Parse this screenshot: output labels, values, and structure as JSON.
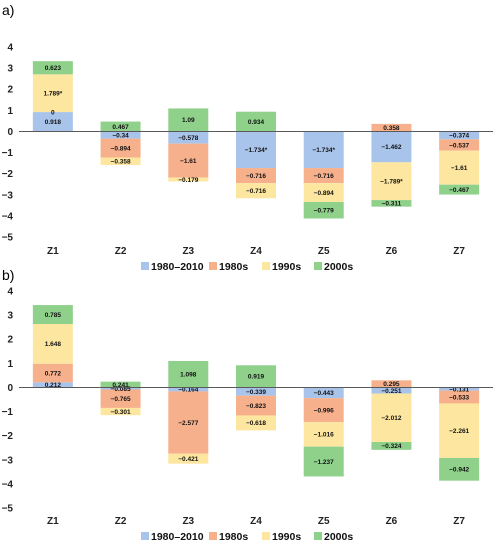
{
  "chart_data": [
    {
      "type": "bar",
      "panel": "a)",
      "categories": [
        "Z1",
        "Z2",
        "Z3",
        "Z4",
        "Z5",
        "Z6",
        "Z7"
      ],
      "ylim": [
        -5,
        4
      ],
      "yticks": [
        "4",
        "3",
        "2",
        "1",
        "0",
        "−1",
        "−2",
        "−3",
        "−4",
        "−5"
      ],
      "grid": false,
      "legend_position": "bottom",
      "series": [
        {
          "name": "1980–2010",
          "color": "#a9c4eb",
          "values": [
            0.918,
            -0.34,
            -0.578,
            -1.734,
            -1.734,
            -1.462,
            -0.374
          ],
          "labels": [
            "0.918",
            "−0.34",
            "−0.578",
            "−1.734*",
            "−1.734*",
            "−1.462",
            "−0.374"
          ]
        },
        {
          "name": "1980s",
          "color": "#f6b18c",
          "values": [
            0,
            -0.894,
            -1.61,
            -0.716,
            -0.716,
            0.358,
            -0.537
          ],
          "labels": [
            "0",
            "−0.894",
            "−1.61",
            "−0.716",
            "−0.716",
            "0.358",
            "−0.537"
          ]
        },
        {
          "name": "1990s",
          "color": "#fde6a0",
          "values": [
            1.789,
            -0.358,
            -0.179,
            -0.716,
            -0.894,
            -1.789,
            -1.61
          ],
          "labels": [
            "1.789*",
            "−0.358",
            "−0.179",
            "−0.716",
            "−0.894",
            "−1.789*",
            "−1.61"
          ]
        },
        {
          "name": "2000s",
          "color": "#8fd18b",
          "values": [
            0.623,
            0.467,
            1.09,
            0.934,
            -0.779,
            -0.311,
            -0.467
          ],
          "labels": [
            "0.623",
            "0.467",
            "1.09",
            "0.934",
            "−0.779",
            "−0.311",
            "−0.467"
          ]
        }
      ]
    },
    {
      "type": "bar",
      "panel": "b)",
      "categories": [
        "Z1",
        "Z2",
        "Z3",
        "Z4",
        "Z5",
        "Z6",
        "Z7"
      ],
      "ylim": [
        -5,
        4
      ],
      "yticks": [
        "4",
        "3",
        "2",
        "1",
        "0",
        "−1",
        "−2",
        "−3",
        "−4",
        "−5"
      ],
      "grid": false,
      "legend_position": "bottom",
      "series": [
        {
          "name": "1980–2010",
          "color": "#a9c4eb",
          "values": [
            0.212,
            -0.085,
            -0.164,
            -0.339,
            -0.443,
            -0.251,
            -0.131
          ],
          "labels": [
            "0.212",
            "−0.085",
            "−0.164",
            "−0.339",
            "−0.443",
            "−0.251",
            "−0.131"
          ]
        },
        {
          "name": "1980s",
          "color": "#f6b18c",
          "values": [
            0.772,
            -0.765,
            -2.577,
            -0.823,
            -0.996,
            0.295,
            -0.533
          ],
          "labels": [
            "0.772",
            "−0.765",
            "−2.577",
            "−0.823",
            "−0.996",
            "0.295",
            "−0.533"
          ]
        },
        {
          "name": "1990s",
          "color": "#fde6a0",
          "values": [
            1.648,
            -0.301,
            -0.421,
            -0.618,
            -1.016,
            -2.012,
            -2.261
          ],
          "labels": [
            "1.648",
            "−0.301",
            "−0.421",
            "−0.618",
            "−1.016",
            "−2.012",
            "−2.261"
          ]
        },
        {
          "name": "2000s",
          "color": "#8fd18b",
          "values": [
            0.785,
            0.241,
            1.098,
            0.919,
            -1.237,
            -0.324,
            -0.942
          ],
          "labels": [
            "0.785",
            "0.241",
            "1.098",
            "0.919",
            "−1.237",
            "−0.324",
            "−0.942"
          ]
        }
      ]
    }
  ]
}
